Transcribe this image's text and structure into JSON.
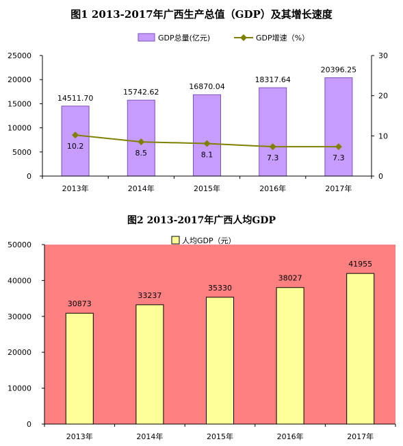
{
  "chart_data": [
    {
      "type": "bar",
      "title": "图1  2013-2017年广西生产总值（GDP）及其增长速度",
      "categories": [
        "2013年",
        "2014年",
        "2015年",
        "2016年",
        "2017年"
      ],
      "series": [
        {
          "name": "GDP总量(亿元)",
          "type": "bar",
          "axis": "left",
          "values": [
            14511.7,
            15742.62,
            16870.04,
            18317.64,
            20396.25
          ],
          "labels": [
            "14511.70",
            "15742.62",
            "16870.04",
            "18317.64",
            "20396.25"
          ],
          "color": "#c79cff",
          "edge": "#7b4fbf"
        },
        {
          "name": "GDP增速（%）",
          "type": "line",
          "axis": "right",
          "values": [
            10.2,
            8.5,
            8.1,
            7.3,
            7.3
          ],
          "labels": [
            "10.2",
            "8.5",
            "8.1",
            "7.3",
            "7.3"
          ],
          "color": "#808000"
        }
      ],
      "ylim": [
        0,
        25000
      ],
      "yticks": [
        "0",
        "5000",
        "10000",
        "15000",
        "20000",
        "25000"
      ],
      "y2lim": [
        0,
        30
      ],
      "y2ticks": [
        "0",
        "10",
        "20",
        "30"
      ],
      "legend": "top-center",
      "grid": false
    },
    {
      "type": "bar",
      "title": "图2    2013-2017年广西人均GDP",
      "categories": [
        "2013年",
        "2014年",
        "2015年",
        "2016年",
        "2017年"
      ],
      "series": [
        {
          "name": "人均GDP（元）",
          "values": [
            30873,
            33237,
            35330,
            38027,
            41955
          ],
          "labels": [
            "30873",
            "33237",
            "35330",
            "38027",
            "41955"
          ],
          "color": "#ffff99",
          "edge": "#000000"
        }
      ],
      "ylim": [
        0,
        50000
      ],
      "yticks": [
        "0",
        "10000",
        "20000",
        "30000",
        "40000",
        "50000"
      ],
      "plot_background": "#ff8080",
      "legend": "top-center",
      "grid": false
    }
  ]
}
